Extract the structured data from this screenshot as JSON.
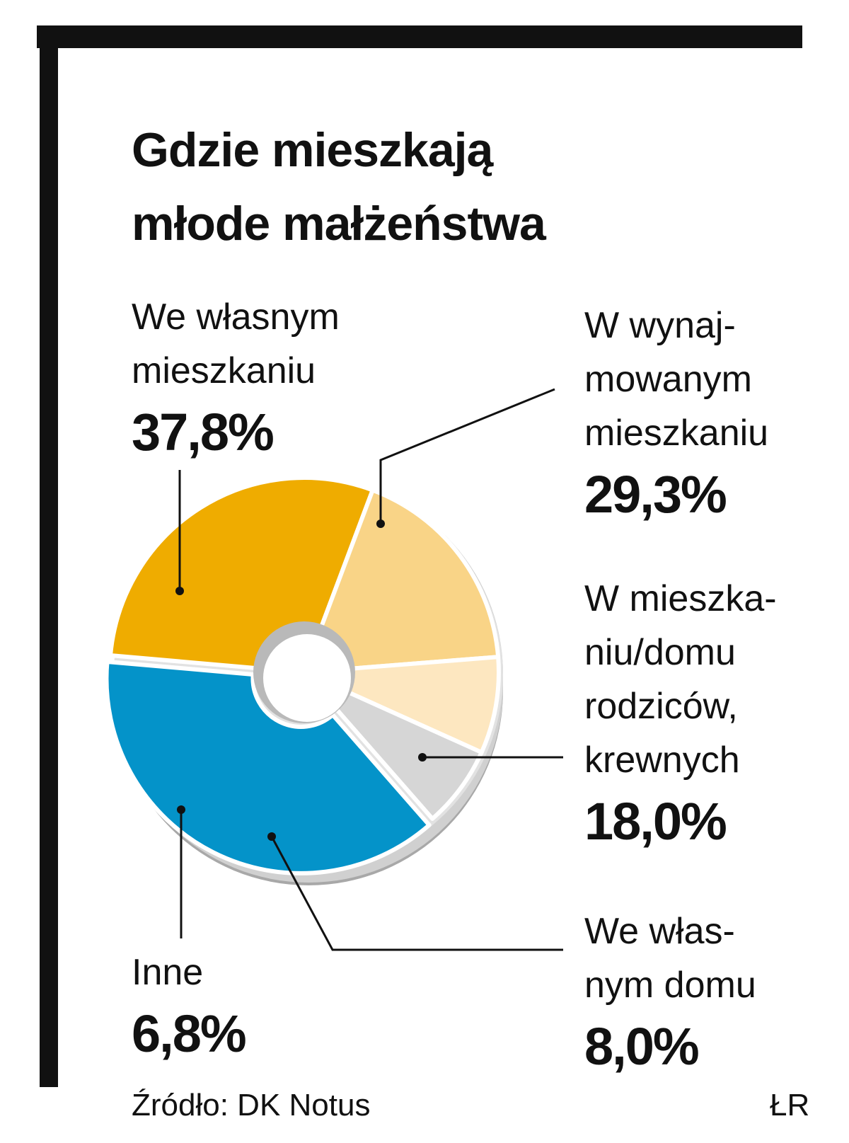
{
  "title_lines": [
    "Gdzie mieszkają",
    "młode małżeństwa"
  ],
  "chart_data": {
    "type": "pie",
    "title": "Gdzie mieszkają młode małżeństwa",
    "unit": "%",
    "donut": true,
    "slices": [
      {
        "label_lines": [
          "W wynaj-",
          "mowanym",
          "mieszkaniu"
        ],
        "value": 29.3,
        "value_label": "29,3%",
        "color": "#efac00"
      },
      {
        "label_lines": [
          "W mieszka-",
          "niu/domu",
          "rodziców,",
          "krewnych"
        ],
        "value": 18.0,
        "value_label": "18,0%",
        "color": "#f9d487"
      },
      {
        "label_lines": [
          "We włas-",
          "nym domu"
        ],
        "value": 8.0,
        "value_label": "8,0%",
        "color": "#fde7c0"
      },
      {
        "label_lines": [
          "Inne"
        ],
        "value": 6.8,
        "value_label": "6,8%",
        "color": "#d6d6d6"
      },
      {
        "label_lines": [
          "We własnym",
          "mieszkaniu"
        ],
        "value": 37.8,
        "value_label": "37,8%",
        "color": "#0493c9"
      }
    ]
  },
  "footer": {
    "source": "Źródło: DK Notus",
    "credit": "ŁR"
  }
}
